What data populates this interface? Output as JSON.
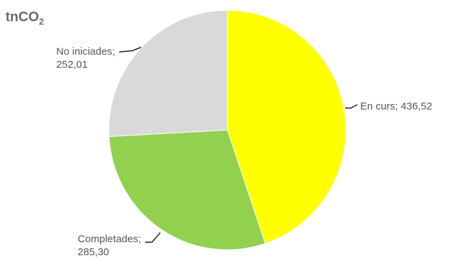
{
  "chart_data": {
    "type": "pie",
    "title": {
      "main": "tnCO",
      "subscript": "2"
    },
    "slices": [
      {
        "label": "En curs",
        "value": 436.52,
        "value_text": "436,52",
        "color": "#FFFF00"
      },
      {
        "label": "Completades",
        "value": 285.3,
        "value_text": "285,30",
        "color": "#92D050"
      },
      {
        "label": "No iniciades",
        "value": 252.01,
        "value_text": "252,01",
        "color": "#D9D9D9"
      }
    ]
  }
}
